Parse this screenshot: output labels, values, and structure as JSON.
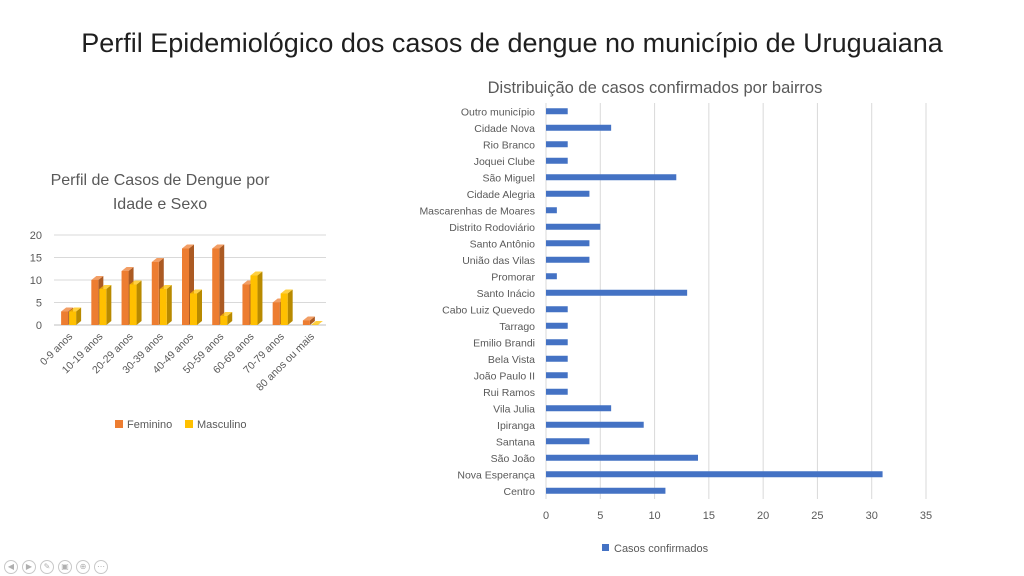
{
  "slide": {
    "title": "Perfil Epidemiológico dos casos de dengue no município de Uruguaiana"
  },
  "colors": {
    "feminino": "#ed7d31",
    "masculino": "#ffc000",
    "bar": "#4472c4",
    "grid": "#d9d9d9",
    "text": "#595959"
  },
  "chart_data": [
    {
      "type": "bar",
      "orientation": "vertical",
      "style": "3d-clustered",
      "title_lines": [
        "Perfil de Casos de Dengue por",
        "Idade e Sexo"
      ],
      "categories": [
        "0-9 anos",
        "10-19 anos",
        "20-29 anos",
        "30-39 anos",
        "40-49 anos",
        "50-59 anos",
        "60-69 anos",
        "70-79 anos",
        "80 anos ou mais"
      ],
      "series": [
        {
          "name": "Feminino",
          "values": [
            3,
            10,
            12,
            14,
            17,
            17,
            9,
            5,
            1
          ]
        },
        {
          "name": "Masculino",
          "values": [
            3,
            8,
            9,
            8,
            7,
            2,
            11,
            7,
            0
          ]
        }
      ],
      "yticks": [
        0,
        5,
        10,
        15,
        20
      ],
      "ylim": [
        0,
        20
      ],
      "grid": true,
      "legend": "bottom"
    },
    {
      "type": "bar",
      "orientation": "horizontal",
      "title": "Distribuição de casos confirmados por bairros",
      "categories": [
        "Outro município",
        "Cidade Nova",
        "Rio Branco",
        "Joquei Clube",
        "São Miguel",
        "Cidade Alegria",
        "Mascarenhas de Moares",
        "Distrito Rodoviário",
        "Santo Antônio",
        "União das Vilas",
        "Promorar",
        "Santo Inácio",
        "Cabo Luiz Quevedo",
        "Tarrago",
        "Emilio Brandi",
        "Bela Vista",
        "João Paulo II",
        "Rui Ramos",
        "Vila Julia",
        "Ipiranga",
        "Santana",
        "São João",
        "Nova Esperança",
        "Centro"
      ],
      "series": [
        {
          "name": "Casos confirmados",
          "values": [
            2,
            6,
            2,
            2,
            12,
            4,
            1,
            5,
            4,
            4,
            1,
            13,
            2,
            2,
            2,
            2,
            2,
            2,
            6,
            9,
            4,
            14,
            31,
            11
          ]
        }
      ],
      "xticks": [
        0,
        5,
        10,
        15,
        20,
        25,
        30,
        35
      ],
      "xlim": [
        0,
        35
      ],
      "grid": true,
      "legend": "bottom"
    }
  ],
  "controls": [
    {
      "name": "back-icon",
      "glyph": "◀"
    },
    {
      "name": "forward-icon",
      "glyph": "▶"
    },
    {
      "name": "pen-icon",
      "glyph": "✎"
    },
    {
      "name": "slides-icon",
      "glyph": "▣"
    },
    {
      "name": "zoom-icon",
      "glyph": "⊕"
    },
    {
      "name": "more-icon",
      "glyph": "⋯"
    }
  ]
}
